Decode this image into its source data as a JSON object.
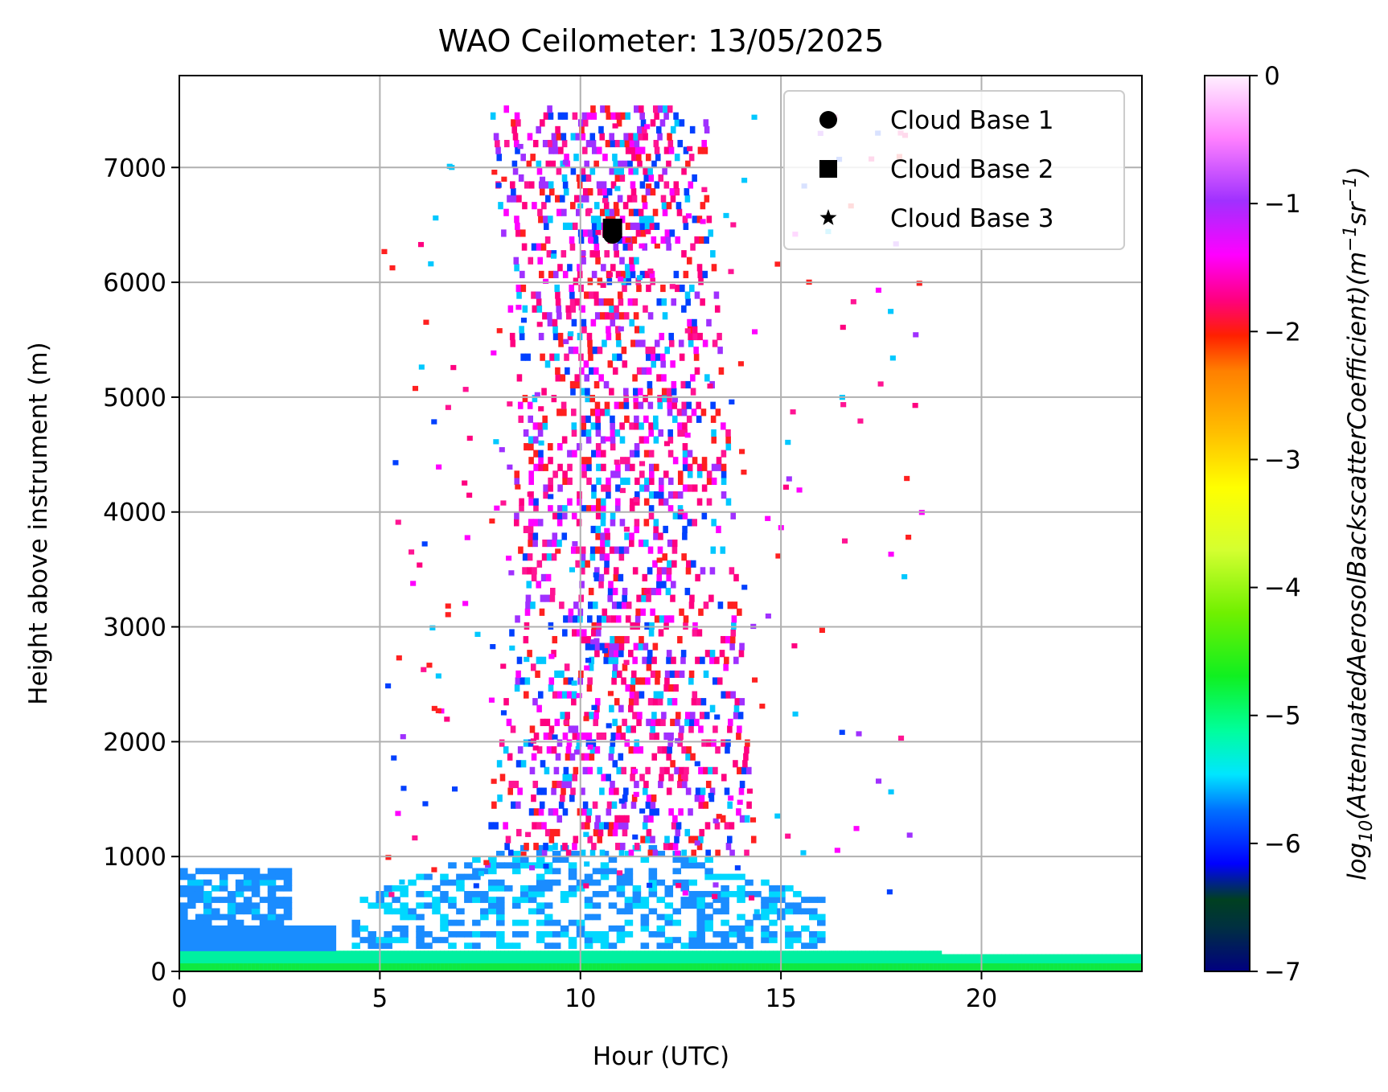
{
  "chart_data": {
    "type": "heatmap",
    "title": "WAO Ceilometer: 13/05/2025",
    "xlabel": "Hour (UTC)",
    "ylabel": "Height above instrument (m)",
    "xlim": [
      0,
      24
    ],
    "ylim": [
      0,
      7800
    ],
    "xticks": [
      "0",
      "5",
      "10",
      "15",
      "20"
    ],
    "xtick_values": [
      0,
      5,
      10,
      15,
      20
    ],
    "yticks": [
      "0",
      "1000",
      "2000",
      "3000",
      "4000",
      "5000",
      "6000",
      "7000"
    ],
    "ytick_values": [
      0,
      1000,
      2000,
      3000,
      4000,
      5000,
      6000,
      7000
    ],
    "grid": true,
    "legend_position": "upper-right",
    "legend": [
      {
        "label": "Cloud Base 1",
        "marker": "circle"
      },
      {
        "label": "Cloud Base 2",
        "marker": "square"
      },
      {
        "label": "Cloud Base 3",
        "marker": "star"
      }
    ],
    "markers": [
      {
        "series": "Cloud Base 1",
        "x": 10.8,
        "y": 6420
      },
      {
        "series": "Cloud Base 2",
        "x": 10.8,
        "y": 6470
      }
    ],
    "colorbar": {
      "label_prefix": "log",
      "label_sub": "10",
      "label_body": "(AttenuatedAerosolBackscatterCoefficient)(m",
      "label_exp1": "−1",
      "label_mid": "sr",
      "label_exp2": "−1",
      "label_end": ")",
      "ticks": [
        "0",
        "−1",
        "−2",
        "−3",
        "−4",
        "−5",
        "−6",
        "−7"
      ],
      "tick_values": [
        0,
        -1,
        -2,
        -3,
        -4,
        -5,
        -6,
        -7
      ],
      "range": [
        -7,
        0
      ],
      "colormap": "gist_ncar"
    },
    "regions": [
      {
        "name": "surface-layer",
        "x": [
          0,
          24
        ],
        "y": [
          0,
          180
        ],
        "value": -5.2
      },
      {
        "name": "night-boundary-layer",
        "x": [
          0,
          3.9
        ],
        "y": [
          180,
          400
        ],
        "value": -6.1
      },
      {
        "name": "night-aerosol-layer",
        "x": [
          0,
          2.8
        ],
        "y": [
          400,
          900
        ],
        "value": -6.0
      },
      {
        "name": "daytime-boundary-layer",
        "x": [
          4.3,
          16.0
        ],
        "y": [
          150,
          1100
        ],
        "value": -5.9
      },
      {
        "name": "cloud-column",
        "x": [
          7.5,
          14.5
        ],
        "y": [
          1000,
          7500
        ],
        "value": -1.5
      }
    ]
  }
}
